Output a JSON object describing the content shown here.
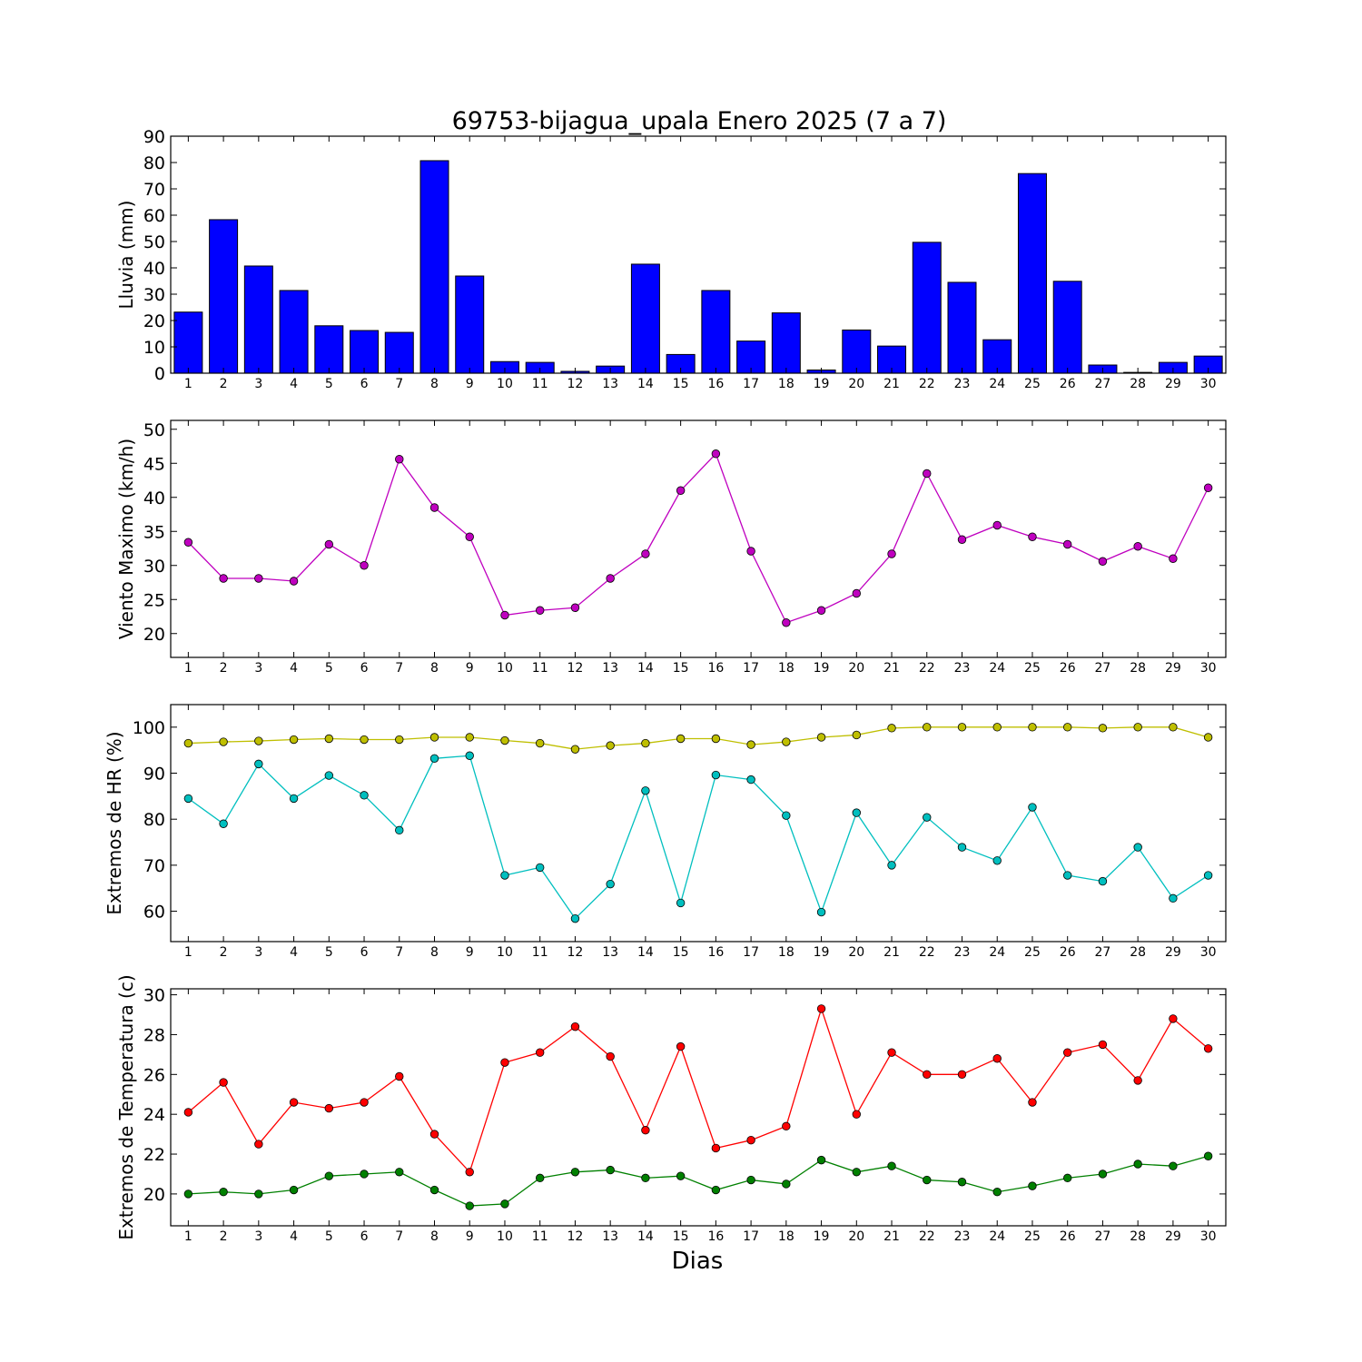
{
  "title": "69753-bijagua_upala Enero 2025  (7 a 7)",
  "xlabel": "Dias",
  "chart_data": [
    {
      "type": "bar",
      "ylabel": "Lluvia (mm)",
      "x": [
        1,
        2,
        3,
        4,
        5,
        6,
        7,
        8,
        9,
        10,
        11,
        12,
        13,
        14,
        15,
        16,
        17,
        18,
        19,
        20,
        21,
        22,
        23,
        24,
        25,
        26,
        27,
        28,
        29,
        30
      ],
      "values": [
        23.2,
        58.3,
        40.7,
        31.4,
        18.0,
        16.2,
        15.5,
        80.7,
        36.9,
        4.4,
        4.1,
        0.7,
        2.7,
        41.4,
        7.1,
        31.4,
        12.2,
        22.9,
        1.2,
        16.4,
        10.3,
        49.7,
        34.5,
        12.7,
        75.8,
        34.9,
        3.1,
        0.3,
        4.1,
        6.5
      ],
      "ylim": [
        0,
        90
      ],
      "yticks": [
        0,
        10,
        20,
        30,
        40,
        50,
        60,
        70,
        80,
        90
      ],
      "color": "#0000ff"
    },
    {
      "type": "line",
      "ylabel": "Viento Maximo (km/h)",
      "x": [
        1,
        2,
        3,
        4,
        5,
        6,
        7,
        8,
        9,
        10,
        11,
        12,
        13,
        14,
        15,
        16,
        17,
        18,
        19,
        20,
        21,
        22,
        23,
        24,
        25,
        26,
        27,
        28,
        29,
        30
      ],
      "values": [
        33.4,
        28.1,
        28.1,
        27.7,
        33.1,
        30.0,
        45.6,
        38.5,
        34.2,
        22.7,
        23.4,
        23.8,
        28.1,
        31.7,
        41.0,
        46.4,
        32.1,
        21.6,
        23.4,
        25.9,
        31.7,
        43.5,
        33.8,
        35.9,
        34.2,
        33.1,
        30.6,
        32.8,
        31.0,
        41.4
      ],
      "ylim": [
        16.5,
        51.3
      ],
      "yticks": [
        20,
        25,
        30,
        35,
        40,
        45,
        50
      ],
      "color": "#bf00bf"
    },
    {
      "type": "line",
      "ylabel": "Extremos de HR (%)",
      "x": [
        1,
        2,
        3,
        4,
        5,
        6,
        7,
        8,
        9,
        10,
        11,
        12,
        13,
        14,
        15,
        16,
        17,
        18,
        19,
        20,
        21,
        22,
        23,
        24,
        25,
        26,
        27,
        28,
        29,
        30
      ],
      "series": [
        {
          "values": [
            96.5,
            96.8,
            97.0,
            97.3,
            97.5,
            97.3,
            97.3,
            97.8,
            97.8,
            97.1,
            96.5,
            95.2,
            96.0,
            96.5,
            97.5,
            97.5,
            96.2,
            96.8,
            97.8,
            98.3,
            99.8,
            100.0,
            100.0,
            100.0,
            100.0,
            100.0,
            99.8,
            100.0,
            100.0,
            97.8
          ],
          "color": "#bfbf00"
        },
        {
          "values": [
            84.5,
            79.0,
            92.0,
            84.5,
            89.5,
            85.2,
            77.6,
            93.2,
            93.8,
            67.8,
            69.5,
            58.4,
            65.9,
            86.2,
            61.8,
            89.6,
            88.6,
            80.8,
            59.8,
            81.4,
            70.0,
            80.4,
            73.9,
            71.0,
            82.6,
            67.8,
            66.5,
            73.9,
            62.8,
            67.8
          ],
          "color": "#00bfbf"
        }
      ],
      "ylim": [
        53.4,
        104.9
      ],
      "yticks": [
        60,
        70,
        80,
        90,
        100
      ]
    },
    {
      "type": "line",
      "ylabel": "Extremos de Temperatura (c)",
      "x": [
        1,
        2,
        3,
        4,
        5,
        6,
        7,
        8,
        9,
        10,
        11,
        12,
        13,
        14,
        15,
        16,
        17,
        18,
        19,
        20,
        21,
        22,
        23,
        24,
        25,
        26,
        27,
        28,
        29,
        30
      ],
      "series": [
        {
          "values": [
            24.1,
            25.6,
            22.5,
            24.6,
            24.3,
            24.6,
            25.9,
            23.0,
            21.1,
            26.6,
            27.1,
            28.4,
            26.9,
            23.2,
            27.4,
            22.3,
            22.7,
            23.4,
            29.3,
            24.0,
            27.1,
            26.0,
            26.0,
            26.8,
            24.6,
            27.1,
            27.5,
            25.7,
            28.8,
            27.3
          ],
          "color": "#ff0000"
        },
        {
          "values": [
            20.0,
            20.1,
            20.0,
            20.2,
            20.9,
            21.0,
            21.1,
            20.2,
            19.4,
            19.5,
            20.8,
            21.1,
            21.2,
            20.8,
            20.9,
            20.2,
            20.7,
            20.5,
            21.7,
            21.1,
            21.4,
            20.7,
            20.6,
            20.1,
            20.4,
            20.8,
            21.0,
            21.5,
            21.4,
            21.9
          ],
          "color": "#008000"
        }
      ],
      "ylim": [
        18.4,
        30.3
      ],
      "yticks": [
        20,
        22,
        24,
        26,
        28,
        30
      ]
    }
  ]
}
